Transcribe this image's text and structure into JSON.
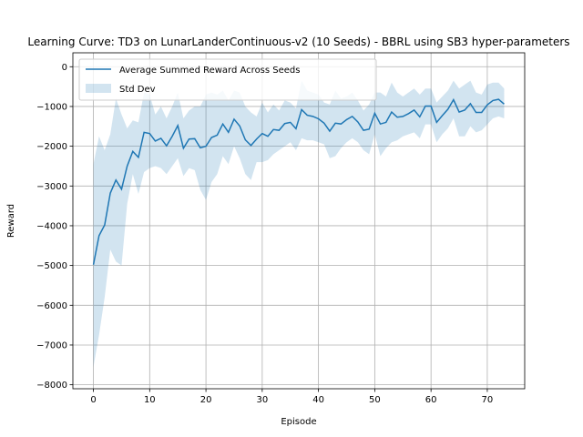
{
  "chart_data": {
    "type": "line",
    "title": "Learning Curve: TD3 on LunarLanderContinuous-v2 (10 Seeds) - BBRL using SB3 hyper-parameters",
    "xlabel": "Episode",
    "ylabel": "Reward",
    "xlim": [
      -3.65,
      76.65
    ],
    "ylim": [
      -8100,
      350
    ],
    "xticks": [
      0,
      10,
      20,
      30,
      40,
      50,
      60,
      70
    ],
    "yticks": [
      0,
      -1000,
      -2000,
      -3000,
      -4000,
      -5000,
      -6000,
      -7000,
      -8000
    ],
    "grid": true,
    "legend_position": "top-left",
    "colors": {
      "line": "#1f77b4",
      "band": "#1f77b4",
      "grid": "#b0b0b0"
    },
    "x": [
      0,
      1,
      2,
      3,
      4,
      5,
      6,
      7,
      8,
      9,
      10,
      11,
      12,
      13,
      14,
      15,
      16,
      17,
      18,
      19,
      20,
      21,
      22,
      23,
      24,
      25,
      26,
      27,
      28,
      29,
      30,
      31,
      32,
      33,
      34,
      35,
      36,
      37,
      38,
      39,
      40,
      41,
      42,
      43,
      44,
      45,
      46,
      47,
      48,
      49,
      50,
      51,
      52,
      53,
      54,
      55,
      56,
      57,
      58,
      59,
      60,
      61,
      62,
      63,
      64,
      65,
      66,
      67,
      68,
      69,
      70,
      71,
      72,
      73
    ],
    "series": [
      {
        "name": "Average Summed Reward Across Seeds",
        "values": [
          -4980,
          -4250,
          -3980,
          -3180,
          -2850,
          -3080,
          -2500,
          -2130,
          -2280,
          -1650,
          -1680,
          -1870,
          -1800,
          -1990,
          -1750,
          -1480,
          -2050,
          -1820,
          -1810,
          -2040,
          -2000,
          -1780,
          -1720,
          -1440,
          -1650,
          -1320,
          -1490,
          -1840,
          -1980,
          -1820,
          -1680,
          -1750,
          -1580,
          -1600,
          -1430,
          -1400,
          -1560,
          -1080,
          -1220,
          -1250,
          -1310,
          -1420,
          -1620,
          -1420,
          -1440,
          -1330,
          -1250,
          -1390,
          -1600,
          -1570,
          -1170,
          -1440,
          -1400,
          -1140,
          -1270,
          -1250,
          -1180,
          -1090,
          -1260,
          -990,
          -990,
          -1400,
          -1230,
          -1070,
          -830,
          -1140,
          -1090,
          -930,
          -1150,
          -1150,
          -960,
          -850,
          -820,
          -940
        ]
      },
      {
        "name": "Std Dev",
        "lower": [
          -7550,
          -6750,
          -5800,
          -4600,
          -4900,
          -5000,
          -3450,
          -2700,
          -3200,
          -2650,
          -2550,
          -2500,
          -2550,
          -2700,
          -2500,
          -2300,
          -2750,
          -2550,
          -2600,
          -3100,
          -3350,
          -2900,
          -2700,
          -2250,
          -2450,
          -2000,
          -2300,
          -2700,
          -2850,
          -2400,
          -2400,
          -2350,
          -2200,
          -2100,
          -2000,
          -1900,
          -2100,
          -1800,
          -1850,
          -1850,
          -1900,
          -1950,
          -2300,
          -2250,
          -2050,
          -1900,
          -1800,
          -1900,
          -2100,
          -2200,
          -1700,
          -2250,
          -2050,
          -1900,
          -1850,
          -1750,
          -1700,
          -1650,
          -1800,
          -1450,
          -1450,
          -1900,
          -1700,
          -1550,
          -1300,
          -1750,
          -1750,
          -1500,
          -1650,
          -1600,
          -1450,
          -1300,
          -1250,
          -1300
        ],
        "upper": [
          -2450,
          -1750,
          -2100,
          -1700,
          -800,
          -1200,
          -1550,
          -1350,
          -1400,
          -650,
          -700,
          -1200,
          -1000,
          -1300,
          -1000,
          -650,
          -1300,
          -1100,
          -1000,
          -1000,
          -700,
          -650,
          -700,
          -600,
          -850,
          -600,
          -650,
          -1000,
          -1150,
          -1250,
          -900,
          -1150,
          -950,
          -1100,
          -850,
          -900,
          -1050,
          -350,
          -600,
          -650,
          -700,
          -900,
          -950,
          -600,
          -800,
          -750,
          -650,
          -850,
          -1100,
          -950,
          -650,
          -650,
          -750,
          -400,
          -650,
          -750,
          -650,
          -550,
          -700,
          -550,
          -550,
          -900,
          -750,
          -600,
          -350,
          -550,
          -450,
          -350,
          -650,
          -700,
          -450,
          -400,
          -400,
          -550
        ]
      }
    ]
  }
}
